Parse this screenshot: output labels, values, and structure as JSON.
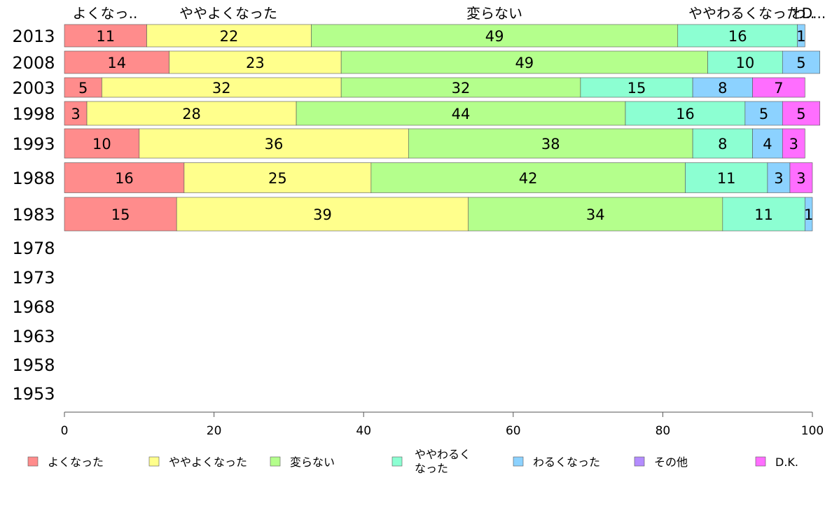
{
  "chart_data": {
    "type": "bar",
    "orientation": "horizontal",
    "stacked": true,
    "categories": [
      "2013",
      "2008",
      "2003",
      "1998",
      "1993",
      "1988",
      "1983",
      "1978",
      "1973",
      "1968",
      "1963",
      "1958",
      "1953"
    ],
    "header_labels": [
      "よくなっ..",
      "ややよくなった",
      "変らない",
      "ややわるくなった",
      "わ..",
      "D..."
    ],
    "series": [
      {
        "name": "よくなった",
        "color": "#FF8C8C",
        "values": [
          11,
          14,
          5,
          3,
          10,
          16,
          15,
          null,
          null,
          null,
          null,
          null,
          null
        ]
      },
      {
        "name": "ややよくなった",
        "color": "#FFFF8C",
        "values": [
          22,
          23,
          32,
          28,
          36,
          25,
          39,
          null,
          null,
          null,
          null,
          null,
          null
        ]
      },
      {
        "name": "変らない",
        "color": "#B4FF8C",
        "values": [
          49,
          49,
          32,
          44,
          38,
          42,
          34,
          null,
          null,
          null,
          null,
          null,
          null
        ]
      },
      {
        "name": "ややわるく\nなった",
        "color": "#8CFFD2",
        "values": [
          16,
          10,
          15,
          16,
          8,
          11,
          11,
          null,
          null,
          null,
          null,
          null,
          null
        ]
      },
      {
        "name": "わるくなった",
        "color": "#8CD2FF",
        "values": [
          1,
          5,
          8,
          5,
          4,
          3,
          1,
          null,
          null,
          null,
          null,
          null,
          null
        ]
      },
      {
        "name": "その他",
        "color": "#B48CFF",
        "values": [
          null,
          null,
          null,
          null,
          null,
          null,
          null,
          null,
          null,
          null,
          null,
          null,
          null
        ]
      },
      {
        "name": "D.K.",
        "color": "#FF6EFF",
        "values": [
          null,
          null,
          7,
          5,
          3,
          3,
          null,
          null,
          null,
          null,
          null,
          null,
          null
        ]
      }
    ],
    "xlim": [
      0,
      100
    ],
    "xticks": [
      0,
      20,
      40,
      60,
      80,
      100
    ],
    "legend_position": "bottom",
    "grid": false
  }
}
